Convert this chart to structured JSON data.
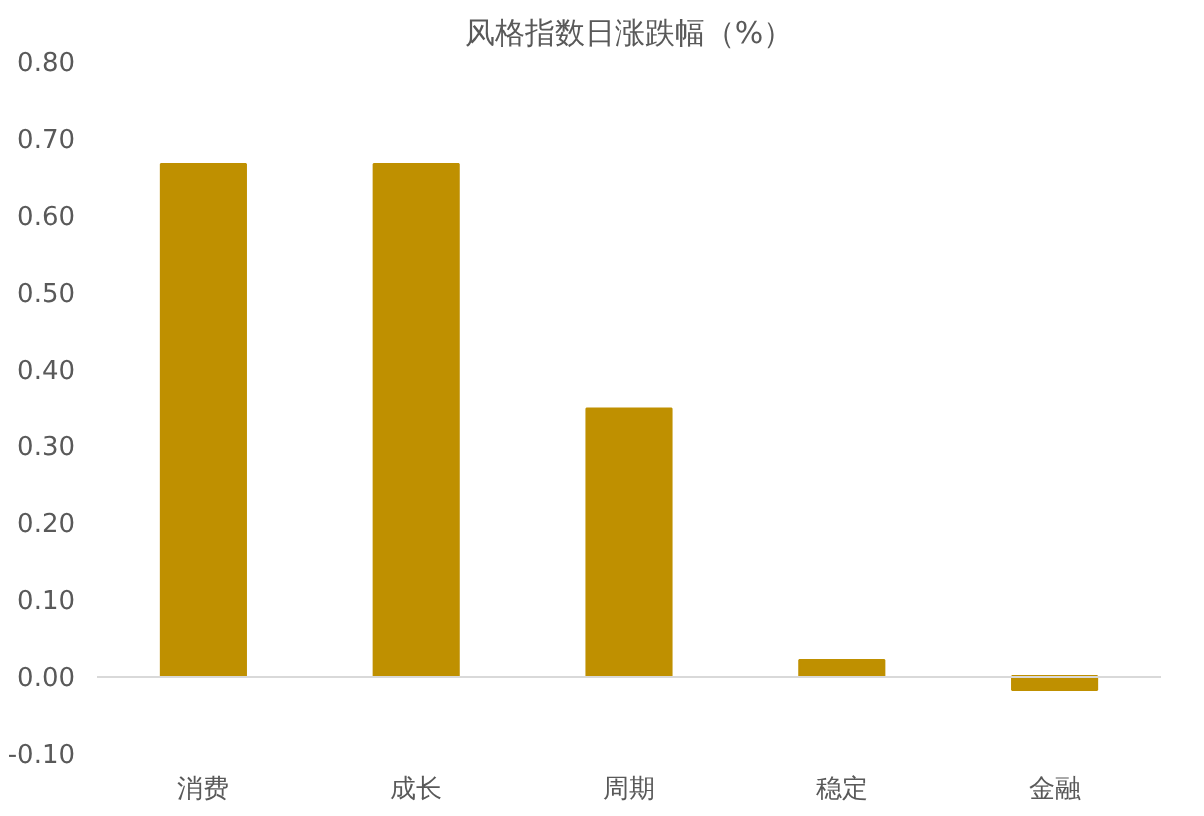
{
  "chart_data": {
    "type": "bar",
    "title": "风格指数日涨跌幅（%）",
    "categories": [
      "消费",
      "成长",
      "周期",
      "稳定",
      "金融"
    ],
    "values": [
      0.666,
      0.666,
      0.348,
      0.021,
      -0.018
    ],
    "color": "#bf9000",
    "ylim": [
      -0.1,
      0.8
    ],
    "yticks": [
      {
        "value": -0.1,
        "label": "-0.10"
      },
      {
        "value": 0,
        "label": "0.00"
      },
      {
        "value": 0.1,
        "label": "0.10"
      },
      {
        "value": 0.2,
        "label": "0.20"
      },
      {
        "value": 0.3,
        "label": "0.30"
      },
      {
        "value": 0.4,
        "label": "0.40"
      },
      {
        "value": 0.5,
        "label": "0.50"
      },
      {
        "value": 0.6,
        "label": "0.60"
      },
      {
        "value": 0.7,
        "label": "0.70"
      },
      {
        "value": 0.8,
        "label": "0.80"
      }
    ]
  }
}
